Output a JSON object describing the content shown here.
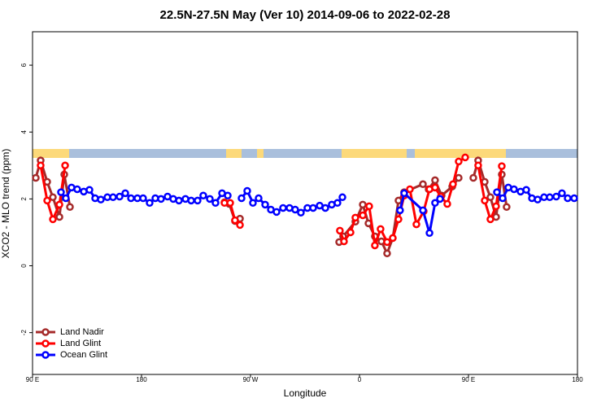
{
  "chart_data": {
    "type": "line",
    "title": "22.5N-27.5N May (Ver 10)   2014-09-06 to 2022-02-28",
    "xlabel": "Longitude",
    "ylabel": "XCO2 - MLO trend (ppm)",
    "xlim": [
      90,
      540
    ],
    "ylim": [
      -3.25,
      7
    ],
    "xticks": [
      {
        "value": 90,
        "label": "90 E"
      },
      180,
      {
        "value": 270,
        "label": "90 W"
      },
      {
        "value": 360,
        "label": "0"
      },
      {
        "value": 450,
        "label": "90 E"
      },
      {
        "value": 540,
        "label": "180"
      }
    ],
    "yticks": [
      -2,
      0,
      2,
      4,
      6
    ],
    "legend": "bottom-left",
    "series": [
      {
        "name": "Land Nadir",
        "color": "#a52a2a",
        "x": [
          92.7,
          96.7,
          102.1,
          106.8,
          112.2,
          116.2,
          120.9,
          null,
          248.5,
          252.5,
          257.2,
          261.3,
          null,
          343.2,
          346.5,
          356.6,
          362.7,
          367.4,
          372.7,
          378.1,
          382.8,
          387.5,
          392.2,
          396.9,
          412.4,
          417.1,
          422.4,
          427.8,
          436.6,
          441.9,
          null,
          454.0,
          458.0,
          463.4,
          468.1,
          472.8,
          477.5,
          481.5
        ],
        "values": [
          2.63,
          3.15,
          2.51,
          2.05,
          1.46,
          2.73,
          1.76,
          null,
          1.9,
          1.85,
          1.34,
          1.41,
          null,
          0.71,
          0.88,
          1.32,
          1.83,
          1.27,
          0.88,
          0.73,
          0.37,
          0.83,
          1.95,
          2.2,
          2.44,
          2.29,
          2.56,
          2.1,
          2.37,
          2.63,
          null,
          2.63,
          3.15,
          2.51,
          2.05,
          1.46,
          2.73,
          1.76
        ]
      },
      {
        "name": "Land Glint",
        "color": "#ff0000",
        "x": [
          96.7,
          102.1,
          106.8,
          112.2,
          116.9,
          null,
          248.5,
          253.2,
          257.2,
          261.3,
          null,
          343.8,
          347.2,
          352.6,
          356.6,
          362.7,
          368.0,
          372.7,
          377.4,
          382.8,
          387.5,
          392.2,
          396.9,
          401.6,
          407.0,
          413.0,
          417.8,
          422.4,
          427.1,
          432.5,
          437.2,
          441.9,
          447.3,
          null,
          458.0,
          463.4,
          468.1,
          472.8,
          477.5
        ],
        "values": [
          3.0,
          1.95,
          1.39,
          1.83,
          3.0,
          null,
          1.88,
          1.88,
          1.36,
          1.22,
          null,
          1.05,
          0.73,
          1.0,
          1.44,
          1.51,
          1.78,
          0.61,
          1.1,
          0.71,
          0.83,
          1.39,
          2.1,
          2.29,
          1.24,
          1.63,
          2.29,
          2.34,
          2.07,
          1.85,
          2.44,
          3.12,
          3.24,
          null,
          3.0,
          1.95,
          1.39,
          1.78,
          2.98
        ]
      },
      {
        "name": "Ocean Glint",
        "color": "#0000ff",
        "x": [
          113.5,
          117.5,
          122.2,
          126.9,
          132.3,
          137.0,
          141.7,
          146.4,
          151.8,
          156.5,
          161.9,
          166.6,
          171.3,
          176.6,
          181.3,
          186.7,
          191.4,
          196.1,
          201.5,
          206.2,
          210.9,
          216.3,
          221.0,
          226.3,
          231.0,
          236.4,
          241.1,
          246.5,
          251.2,
          null,
          262.6,
          267.3,
          272.0,
          276.7,
          282.1,
          286.8,
          291.5,
          296.9,
          302.2,
          306.9,
          311.6,
          317.0,
          321.7,
          327.1,
          331.8,
          337.1,
          341.8,
          345.9,
          null,
          393.5,
          396.9,
          412.4,
          417.8,
          422.4,
          426.5,
          null,
          473.5,
          478.2,
          482.9,
          487.6,
          493.0,
          497.7,
          502.4,
          507.1,
          512.4,
          517.1,
          522.5,
          527.2,
          531.9,
          537.3
        ],
        "values": [
          2.2,
          2.02,
          2.34,
          2.29,
          2.22,
          2.27,
          2.02,
          1.98,
          2.05,
          2.05,
          2.07,
          2.17,
          2.02,
          2.02,
          2.02,
          1.88,
          2.02,
          2.0,
          2.07,
          2.0,
          1.95,
          2.0,
          1.95,
          1.95,
          2.1,
          2.0,
          1.88,
          2.17,
          2.1,
          null,
          2.02,
          2.24,
          1.88,
          2.02,
          1.83,
          1.68,
          1.61,
          1.73,
          1.73,
          1.68,
          1.59,
          1.73,
          1.73,
          1.8,
          1.73,
          1.83,
          1.88,
          2.05,
          null,
          1.66,
          2.17,
          1.66,
          0.98,
          1.88,
          2.0,
          null,
          2.2,
          2.02,
          2.34,
          2.29,
          2.22,
          2.27,
          2.02,
          1.98,
          2.05,
          2.05,
          2.07,
          2.17,
          2.02,
          2.02
        ]
      }
    ]
  }
}
